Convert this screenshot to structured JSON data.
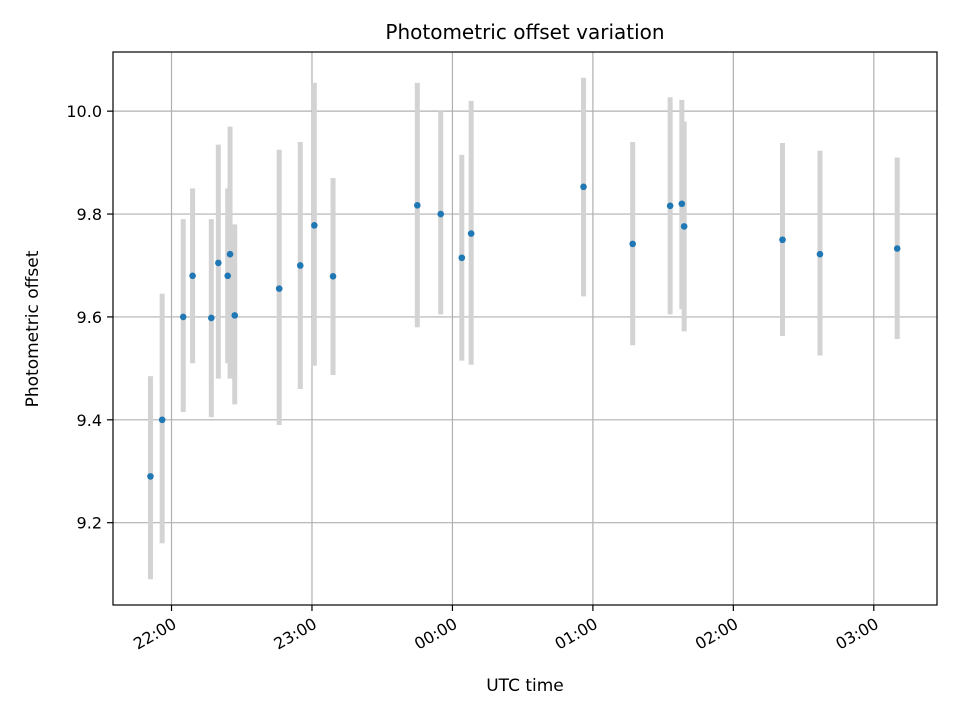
{
  "chart_data": {
    "type": "scatter",
    "title": "Photometric offset variation",
    "xlabel": "UTC time",
    "ylabel": "Photometric offset",
    "x_axis": {
      "kind": "time",
      "range": [
        "21:35",
        "03:27"
      ],
      "ticks": [
        "22:00",
        "23:00",
        "00:00",
        "01:00",
        "02:00",
        "03:00"
      ]
    },
    "y_axis": {
      "range": [
        9.04,
        10.115
      ],
      "ticks": [
        "9.2",
        "9.4",
        "9.6",
        "9.8",
        "10.0"
      ]
    },
    "grid": true,
    "error_bar_color": "#d3d3d3",
    "marker_color": "#1f77b4",
    "points": [
      {
        "x": "21:51",
        "y": 9.29,
        "ylo": 9.09,
        "yhi": 9.485
      },
      {
        "x": "21:56",
        "y": 9.4,
        "ylo": 9.16,
        "yhi": 9.645
      },
      {
        "x": "22:05",
        "y": 9.6,
        "ylo": 9.415,
        "yhi": 9.79
      },
      {
        "x": "22:09",
        "y": 9.68,
        "ylo": 9.51,
        "yhi": 9.85
      },
      {
        "x": "22:17",
        "y": 9.598,
        "ylo": 9.405,
        "yhi": 9.79
      },
      {
        "x": "22:20",
        "y": 9.705,
        "ylo": 9.48,
        "yhi": 9.935
      },
      {
        "x": "22:24",
        "y": 9.68,
        "ylo": 9.51,
        "yhi": 9.85
      },
      {
        "x": "22:25",
        "y": 9.722,
        "ylo": 9.48,
        "yhi": 9.97
      },
      {
        "x": "22:27",
        "y": 9.603,
        "ylo": 9.43,
        "yhi": 9.78
      },
      {
        "x": "22:46",
        "y": 9.655,
        "ylo": 9.39,
        "yhi": 9.925
      },
      {
        "x": "22:55",
        "y": 9.7,
        "ylo": 9.46,
        "yhi": 9.94
      },
      {
        "x": "23:01",
        "y": 9.778,
        "ylo": 9.505,
        "yhi": 10.055
      },
      {
        "x": "23:09",
        "y": 9.679,
        "ylo": 9.487,
        "yhi": 9.87
      },
      {
        "x": "23:45",
        "y": 9.817,
        "ylo": 9.58,
        "yhi": 10.055
      },
      {
        "x": "23:55",
        "y": 9.8,
        "ylo": 9.605,
        "yhi": 10.0
      },
      {
        "x": "00:04",
        "y": 9.715,
        "ylo": 9.515,
        "yhi": 9.915
      },
      {
        "x": "00:08",
        "y": 9.762,
        "ylo": 9.507,
        "yhi": 10.02
      },
      {
        "x": "00:56",
        "y": 9.853,
        "ylo": 9.64,
        "yhi": 10.065
      },
      {
        "x": "01:17",
        "y": 9.742,
        "ylo": 9.545,
        "yhi": 9.94
      },
      {
        "x": "01:33",
        "y": 9.816,
        "ylo": 9.605,
        "yhi": 10.027
      },
      {
        "x": "01:38",
        "y": 9.82,
        "ylo": 9.615,
        "yhi": 10.022
      },
      {
        "x": "01:39",
        "y": 9.776,
        "ylo": 9.572,
        "yhi": 9.98
      },
      {
        "x": "02:21",
        "y": 9.75,
        "ylo": 9.563,
        "yhi": 9.938
      },
      {
        "x": "02:37",
        "y": 9.722,
        "ylo": 9.525,
        "yhi": 9.923
      },
      {
        "x": "03:10",
        "y": 9.733,
        "ylo": 9.557,
        "yhi": 9.91
      }
    ]
  }
}
